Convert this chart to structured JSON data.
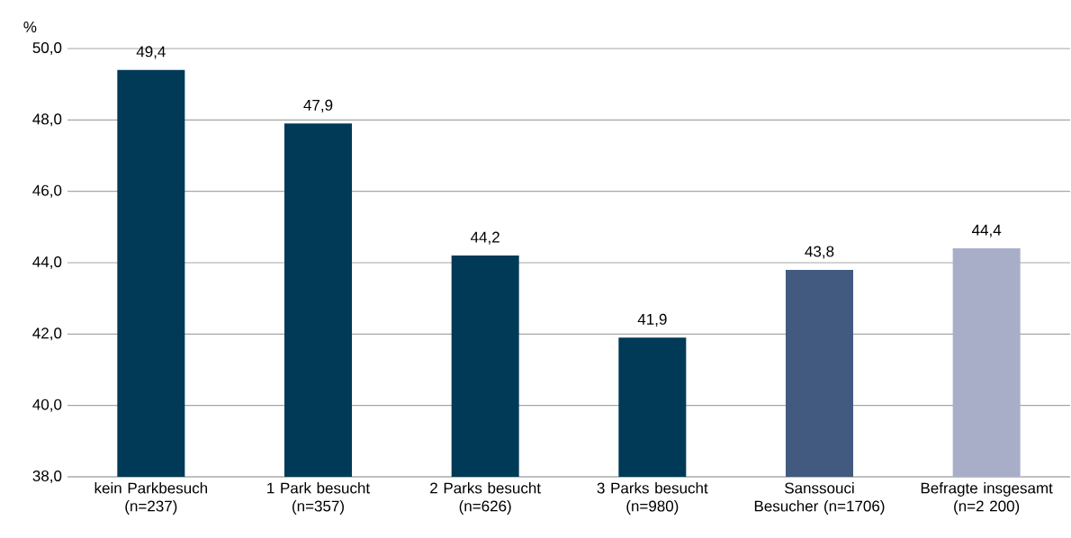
{
  "chart_data": {
    "type": "bar",
    "ylabel": "%",
    "categories": [
      "kein Parkbesuch (n=237)",
      "1 Park besucht (n=357)",
      "2 Parks besucht (n=626)",
      "3 Parks besucht (n=980)",
      "Sanssouci Besucher (n=1706)",
      "Befragte insgesamt (n=2 200)"
    ],
    "values": [
      49.4,
      47.9,
      44.2,
      41.9,
      43.8,
      44.4
    ],
    "value_labels": [
      "49,4",
      "47,9",
      "44,2",
      "41,9",
      "43,8",
      "44,4"
    ],
    "colors": [
      "#003a57",
      "#003a57",
      "#003a57",
      "#003a57",
      "#425a80",
      "#a9aec8"
    ],
    "ylim": [
      38,
      50
    ],
    "yticks": [
      {
        "value": 38,
        "label": "38,0"
      },
      {
        "value": 40,
        "label": "40,0"
      },
      {
        "value": 42,
        "label": "42,0"
      },
      {
        "value": 44,
        "label": "44,0"
      },
      {
        "value": 46,
        "label": "46,0"
      },
      {
        "value": 48,
        "label": "48,0"
      },
      {
        "value": 50,
        "label": "50,0"
      }
    ],
    "grid": "y"
  }
}
